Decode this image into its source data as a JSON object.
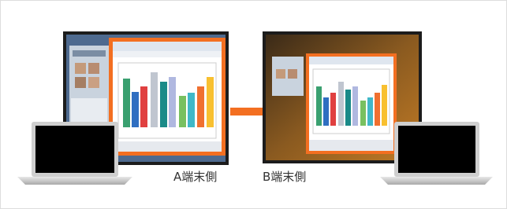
{
  "labels": {
    "a_side": "A端末側",
    "b_side": "B端末側"
  }
}
